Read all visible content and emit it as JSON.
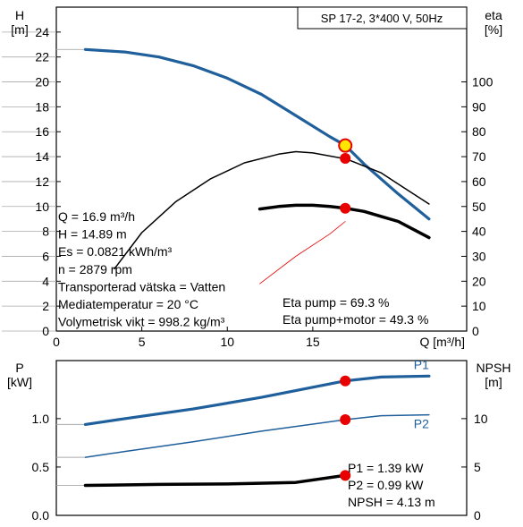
{
  "colors": {
    "blue": "#1f5f9b",
    "black": "#000000",
    "red": "#e80000",
    "op_fill": "#ffe600",
    "grid": "#aaaaaa"
  },
  "chart_data": [
    {
      "type": "line",
      "title": "SP 17-2, 3*400 V, 50Hz",
      "left_axis_label": [
        "H",
        "[m]"
      ],
      "right_axis_label": [
        "eta",
        "[%]"
      ],
      "xlabel": "Q [m³/h]",
      "xlim": [
        0,
        24
      ],
      "ylim": [
        0,
        26
      ],
      "x_ticks": [
        0,
        5,
        10,
        15
      ],
      "y_ticks": [
        0,
        2,
        4,
        6,
        8,
        10,
        12,
        14,
        16,
        18,
        20,
        22,
        24
      ],
      "y2lim": [
        0,
        130
      ],
      "y2_ticks": [
        0,
        10,
        20,
        30,
        40,
        50,
        60,
        70,
        80,
        90,
        100
      ],
      "grid": false,
      "series": [
        {
          "key": "head",
          "x": [
            0,
            1.7,
            4,
            6,
            8,
            10,
            12,
            14,
            16,
            16.9,
            18,
            20,
            21.8
          ],
          "y": [
            22.6,
            22.6,
            22.4,
            22.0,
            21.3,
            20.3,
            19.0,
            17.3,
            15.6,
            14.9,
            13.4,
            11.0,
            9.0
          ]
        },
        {
          "key": "eta_pump",
          "x": [
            3.4,
            5,
            7,
            9,
            11,
            13,
            14,
            15,
            17,
            19,
            20,
            21.8
          ],
          "y": [
            25,
            39.5,
            52,
            61,
            67.5,
            71,
            72,
            71.5,
            69,
            63.5,
            59,
            51
          ]
        },
        {
          "key": "eta_total",
          "x": [
            11.9,
            13,
            14,
            15,
            16,
            16.9,
            18,
            19,
            20,
            21.8
          ],
          "y": [
            49,
            50,
            50.5,
            50.5,
            50,
            49.3,
            48,
            46,
            44,
            37.5
          ]
        },
        {
          "key": "red_line",
          "x": [
            11.9,
            14,
            16,
            16.9
          ],
          "y": [
            19,
            30,
            39,
            44
          ]
        }
      ],
      "operating_point": {
        "x": 16.9,
        "h": 14.89,
        "eta_pump": 69.3,
        "eta_total": 49.3
      },
      "info": [
        "Q = 16.9 m³/h",
        "H = 14.89 m",
        "Es = 0.0821 kWh/m³",
        "n = 2879 rpm",
        "Transporterad vätska = Vatten",
        "Mediatemperatur = 20 °C",
        "Volymetrisk vikt = 998.2 kg/m³"
      ],
      "info_right": [
        "Eta pump = 69.3 %",
        "Eta pump+motor = 49.3 %"
      ]
    },
    {
      "type": "line",
      "left_axis_label": [
        "P",
        "[kW]"
      ],
      "right_axis_label": [
        "NPSH",
        "[m]"
      ],
      "xlim": [
        0,
        24
      ],
      "ylim": [
        0,
        1.6
      ],
      "y_ticks": [
        0.0,
        0.5,
        1.0
      ],
      "y_tick_labels": [
        "0.0",
        "0.5",
        "1.0"
      ],
      "y2lim": [
        0,
        16
      ],
      "y2_ticks": [
        0,
        5,
        10
      ],
      "grid": false,
      "series": [
        {
          "key": "P1",
          "name": "P1",
          "x": [
            0,
            1.7,
            4,
            8,
            12,
            16.9,
            19,
            21.8
          ],
          "y": [
            0.94,
            0.94,
            1.0,
            1.1,
            1.22,
            1.39,
            1.43,
            1.44
          ]
        },
        {
          "key": "P2",
          "name": "P2",
          "x": [
            0,
            1.7,
            4,
            8,
            12,
            16.9,
            19,
            21.8
          ],
          "y": [
            0.6,
            0.6,
            0.66,
            0.76,
            0.87,
            0.99,
            1.03,
            1.04
          ]
        },
        {
          "key": "NPSH",
          "x": [
            0,
            1.7,
            6,
            10,
            14,
            16.9
          ],
          "y": [
            3.1,
            3.1,
            3.2,
            3.25,
            3.4,
            4.13
          ]
        }
      ],
      "operating_point": {
        "x": 16.9,
        "P1": 1.39,
        "P2": 0.99,
        "NPSH": 4.13
      },
      "info": [
        "P1 = 1.39 kW",
        "P2 = 0.99 kW",
        "NPSH = 4.13 m"
      ]
    }
  ]
}
